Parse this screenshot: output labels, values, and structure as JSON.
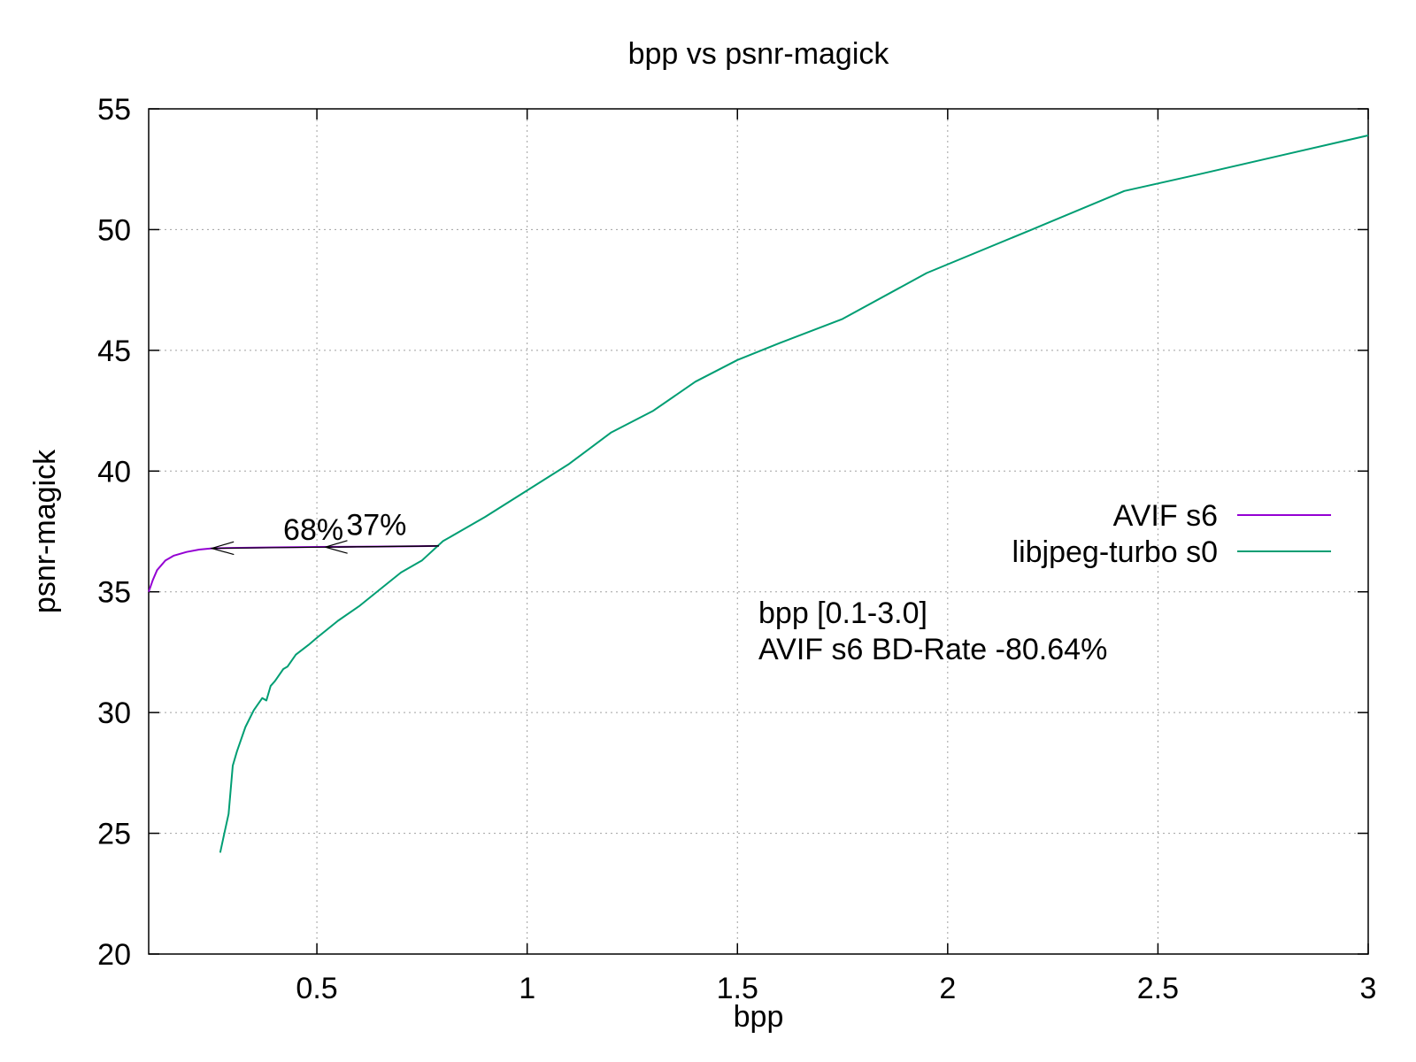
{
  "chart_data": {
    "type": "line",
    "title": "bpp vs psnr-magick",
    "xlabel": "bpp",
    "ylabel": "psnr-magick",
    "xlim": [
      0.1,
      3.0
    ],
    "ylim": [
      20,
      55
    ],
    "x_ticks": [
      "0.5",
      "1",
      "1.5",
      "2",
      "2.5",
      "3"
    ],
    "y_ticks": [
      "20",
      "25",
      "30",
      "35",
      "40",
      "45",
      "50",
      "55"
    ],
    "grid": true,
    "legend_position": "right",
    "series": [
      {
        "name": "AVIF s6",
        "color": "#9400d3",
        "x": [
          0.1,
          0.11,
          0.12,
          0.14,
          0.16,
          0.19,
          0.22,
          0.25,
          0.3,
          0.4,
          0.5,
          0.6,
          0.7,
          0.79
        ],
        "y": [
          35.0,
          35.5,
          35.9,
          36.3,
          36.5,
          36.65,
          36.75,
          36.8,
          36.82,
          36.84,
          36.86,
          36.87,
          36.88,
          36.9
        ]
      },
      {
        "name": "libjpeg-turbo s0",
        "color": "#009e73",
        "x": [
          0.27,
          0.28,
          0.29,
          0.3,
          0.31,
          0.33,
          0.35,
          0.37,
          0.38,
          0.39,
          0.4,
          0.42,
          0.43,
          0.45,
          0.48,
          0.5,
          0.55,
          0.6,
          0.65,
          0.7,
          0.75,
          0.8,
          0.85,
          0.9,
          1.0,
          1.1,
          1.2,
          1.3,
          1.4,
          1.5,
          1.6,
          1.75,
          1.95,
          2.2,
          2.42,
          2.6,
          2.8,
          3.0
        ],
        "y": [
          24.2,
          25.0,
          25.8,
          27.8,
          28.4,
          29.4,
          30.1,
          30.6,
          30.5,
          31.1,
          31.3,
          31.8,
          31.9,
          32.4,
          32.8,
          33.1,
          33.8,
          34.4,
          35.1,
          35.8,
          36.3,
          37.1,
          37.6,
          38.1,
          39.2,
          40.3,
          41.6,
          42.5,
          43.7,
          44.6,
          45.3,
          46.3,
          48.2,
          50.0,
          51.6,
          52.3,
          53.1,
          53.9
        ]
      }
    ],
    "annotations": [
      {
        "text": "68%",
        "x": 0.42,
        "y": 37.15
      },
      {
        "text": "37%",
        "x": 0.57,
        "y": 37.35
      },
      {
        "text": "bpp [0.1-3.0]",
        "x": 1.55,
        "y": 33.7,
        "color": "#00ff00"
      },
      {
        "text": "AVIF s6 BD-Rate -80.64%",
        "x": 1.55,
        "y": 32.2,
        "color": "#00ff00"
      }
    ],
    "arrows": [
      {
        "from": [
          0.79,
          36.9
        ],
        "to": [
          0.25,
          36.8
        ]
      },
      {
        "from": [
          0.79,
          36.9
        ],
        "to": [
          0.52,
          36.85
        ]
      }
    ]
  }
}
